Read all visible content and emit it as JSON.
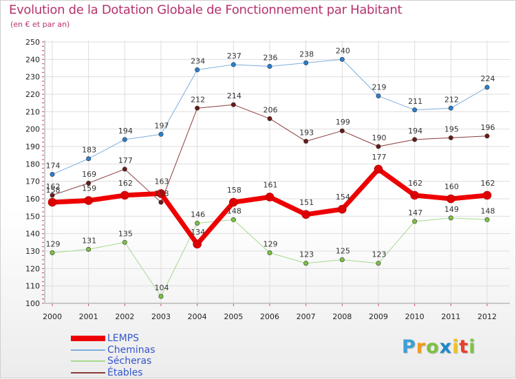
{
  "title": "Evolution de la Dotation Globale de Fonctionnement par Habitant",
  "subtitle": "(en € et par an)",
  "logo": {
    "letters": [
      "P",
      "r",
      "o",
      "x",
      "i",
      "t",
      "i"
    ],
    "colors": [
      "#3aa0d8",
      "#f39a1e",
      "#7cc242",
      "#1e88c8",
      "#f3c21e",
      "#e8402a",
      "#7cc242"
    ]
  },
  "colors": {
    "title": "#b5336d",
    "grid": "#dddddd",
    "legend_text": "#3355cc"
  },
  "chart_data": {
    "type": "line",
    "title": "Evolution de la Dotation Globale de Fonctionnement par Habitant",
    "subtitle": "(en € et par an)",
    "xlabel": "",
    "ylabel": "",
    "ylim": [
      100,
      250
    ],
    "yticks": [
      100,
      110,
      120,
      130,
      140,
      150,
      160,
      170,
      180,
      190,
      200,
      210,
      220,
      230,
      240,
      250
    ],
    "grid": true,
    "legend_position": "bottom-left",
    "categories": [
      "2000",
      "2001",
      "2002",
      "2003",
      "2004",
      "2005",
      "2006",
      "2007",
      "2008",
      "2009",
      "2010",
      "2011",
      "2012"
    ],
    "series": [
      {
        "name": "Cheminas",
        "color": "#7aaedc",
        "marker": "#2a7fd0",
        "width": 1,
        "values": [
          174,
          183,
          194,
          197,
          234,
          237,
          236,
          238,
          240,
          219,
          211,
          212,
          224
        ]
      },
      {
        "name": "Étables",
        "color": "#8a3a3a",
        "marker": "#6a1a1a",
        "width": 1,
        "values": [
          162,
          169,
          177,
          158,
          212,
          214,
          206,
          193,
          199,
          190,
          194,
          195,
          196
        ]
      },
      {
        "name": "Sécheras",
        "color": "#a6d98a",
        "marker": "#7cc242",
        "width": 1,
        "values": [
          129,
          131,
          135,
          104,
          146,
          148,
          129,
          123,
          125,
          123,
          147,
          149,
          148
        ]
      },
      {
        "name": "LEMPS",
        "color": "#ee0000",
        "marker": "#dd0000",
        "width": 7,
        "values": [
          158,
          159,
          162,
          163,
          134,
          158,
          161,
          151,
          154,
          177,
          162,
          160,
          162
        ]
      }
    ],
    "legend_order": [
      "LEMPS",
      "Cheminas",
      "Sécheras",
      "Étables"
    ]
  }
}
